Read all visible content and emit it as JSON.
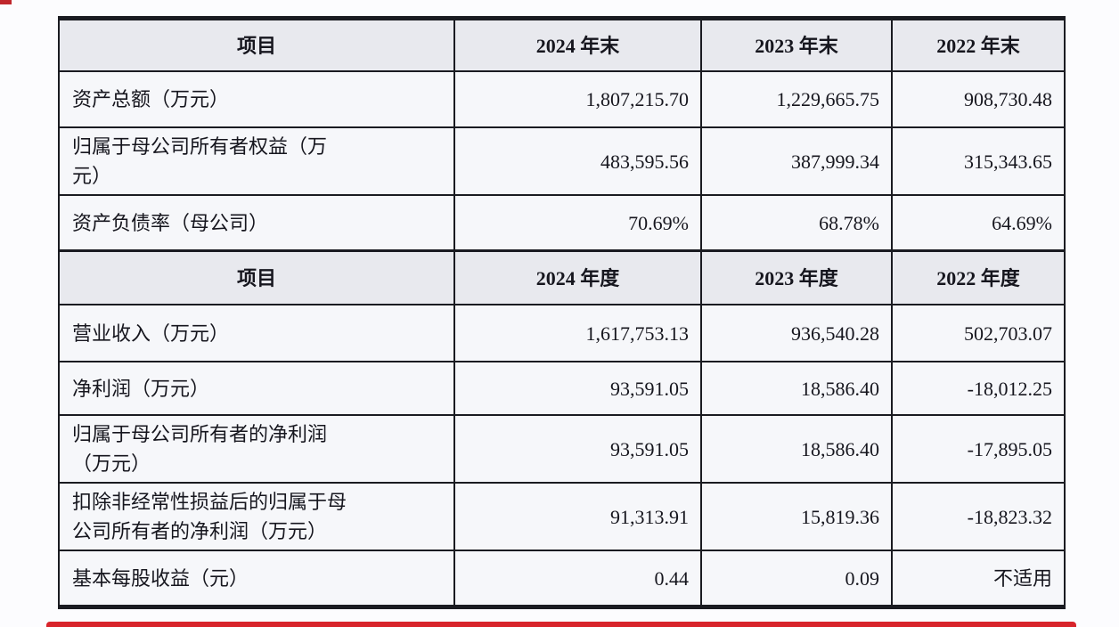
{
  "decor": {
    "accent_red": "#d8242b",
    "corner_fragment_color": "#c0262c"
  },
  "table": {
    "header_bg": "#e8e9ee",
    "body_bg": "#f6f7fa",
    "border_color": "#1a1b21",
    "sections": [
      {
        "header": {
          "item": "项目",
          "cols": [
            "2024 年末",
            "2023 年末",
            "2022 年末"
          ]
        },
        "rows": [
          {
            "label": "资产总额（万元）",
            "values": [
              "1,807,215.70",
              "1,229,665.75",
              "908,730.48"
            ]
          },
          {
            "label": "归属于母公司所有者权益（万\n元）",
            "values": [
              "483,595.56",
              "387,999.34",
              "315,343.65"
            ]
          },
          {
            "label": "资产负债率（母公司）",
            "values": [
              "70.69%",
              "68.78%",
              "64.69%"
            ]
          }
        ]
      },
      {
        "header": {
          "item": "项目",
          "cols": [
            "2024 年度",
            "2023 年度",
            "2022 年度"
          ]
        },
        "rows": [
          {
            "label": "营业收入（万元）",
            "values": [
              "1,617,753.13",
              "936,540.28",
              "502,703.07"
            ]
          },
          {
            "label": "净利润（万元）",
            "values": [
              "93,591.05",
              "18,586.40",
              "-18,012.25"
            ]
          },
          {
            "label": "归属于母公司所有者的净利润\n（万元）",
            "values": [
              "93,591.05",
              "18,586.40",
              "-17,895.05"
            ]
          },
          {
            "label": "扣除非经常性损益后的归属于母\n公司所有者的净利润（万元）",
            "values": [
              "91,313.91",
              "15,819.36",
              "-18,823.32"
            ]
          },
          {
            "label": "基本每股收益（元）",
            "values": [
              "0.44",
              "0.09",
              "不适用"
            ]
          }
        ]
      }
    ]
  }
}
